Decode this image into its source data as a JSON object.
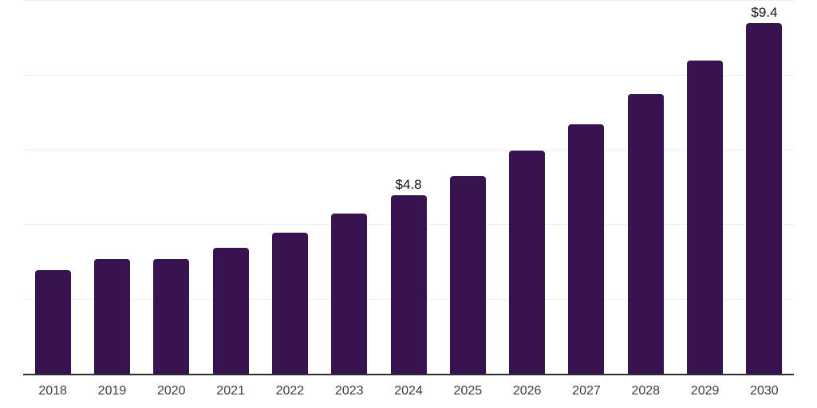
{
  "chart_data": {
    "type": "bar",
    "title": "",
    "xlabel": "",
    "ylabel": "",
    "categories": [
      "2018",
      "2019",
      "2020",
      "2021",
      "2022",
      "2023",
      "2024",
      "2025",
      "2026",
      "2027",
      "2028",
      "2029",
      "2030"
    ],
    "values": [
      2.8,
      3.1,
      3.1,
      3.4,
      3.8,
      4.3,
      4.8,
      5.3,
      6.0,
      6.7,
      7.5,
      8.4,
      9.4
    ],
    "data_labels": [
      "",
      "",
      "",
      "",
      "",
      "",
      "$4.8",
      "",
      "",
      "",
      "",
      "",
      "$9.4"
    ],
    "ylim": [
      0,
      10
    ],
    "gridline_step": 2,
    "grid": true,
    "legend_position": "none",
    "bar_color": "#371350",
    "axis_color": "#2f2f2f",
    "gridline_color": "#ededed",
    "tick_label_color": "#3d3d3d",
    "data_label_color": "#141414"
  }
}
